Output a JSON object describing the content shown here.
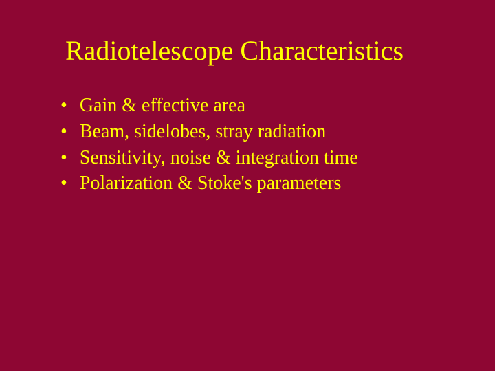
{
  "slide": {
    "background_color": "#8e0633",
    "title": {
      "text": "Radiotelescope Characteristics",
      "color": "#ffff00",
      "font_size": 40
    },
    "bullets": {
      "color": "#ffff00",
      "font_size": 28,
      "marker": "•",
      "items": [
        "Gain & effective area",
        "Beam, sidelobes, stray radiation",
        "Sensitivity, noise & integration time",
        "Polarization & Stoke's parameters"
      ]
    }
  }
}
